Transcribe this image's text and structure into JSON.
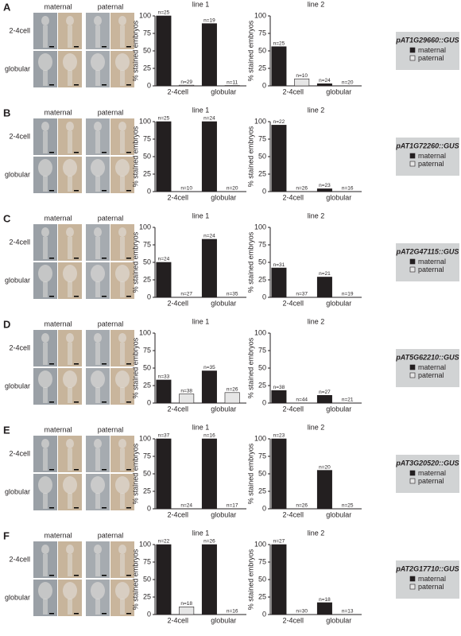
{
  "panels": [
    {
      "label": "A",
      "gene": "pAT1G29660::GUS",
      "columns": [
        "maternal",
        "paternal"
      ],
      "rows": [
        "2-4cell",
        "globular"
      ]
    },
    {
      "label": "B",
      "gene": "pAT1G72260::GUS",
      "columns": [
        "maternal",
        "paternal"
      ],
      "rows": [
        "2-4cell",
        "globular"
      ]
    },
    {
      "label": "C",
      "gene": "pAT2G47115::GUS",
      "columns": [
        "maternal",
        "paternal"
      ],
      "rows": [
        "2-4cell",
        "globular"
      ]
    },
    {
      "label": "D",
      "gene": "pAT5G62210::GUS",
      "columns": [
        "maternal",
        "paternal"
      ],
      "rows": [
        "2-4cell",
        "globular"
      ]
    },
    {
      "label": "E",
      "gene": "pAT3G20520::GUS",
      "columns": [
        "maternal",
        "paternal"
      ],
      "rows": [
        "2-4cell",
        "globular"
      ]
    },
    {
      "label": "F",
      "gene": "pAT2G17710::GUS",
      "columns": [
        "maternal",
        "paternal"
      ],
      "rows": [
        "2-4cell",
        "globular"
      ]
    }
  ],
  "chart_data": [
    {
      "type": "bar",
      "title": "line 1",
      "y_label": "% stained embryos",
      "categories": [
        "2-4cell",
        "globular"
      ],
      "ylim": [
        0,
        100
      ],
      "yticks": [
        0,
        25,
        50,
        75,
        100
      ],
      "series": [
        {
          "name": "maternal",
          "color": "#231f20",
          "values": [
            100,
            89
          ],
          "n_labels": [
            "n=25",
            "n=19"
          ]
        },
        {
          "name": "paternal",
          "color": "#e6e6e6",
          "values": [
            1,
            0.5
          ],
          "n_labels": [
            "n=29",
            "n=11"
          ]
        }
      ]
    },
    {
      "type": "bar",
      "title": "line 2",
      "y_label": "% stained embryos",
      "categories": [
        "2-4cell",
        "globular"
      ],
      "ylim": [
        0,
        100
      ],
      "yticks": [
        0,
        25,
        50,
        75,
        100
      ],
      "series": [
        {
          "name": "maternal",
          "color": "#231f20",
          "values": [
            56,
            3
          ],
          "n_labels": [
            "n=25",
            "n=24"
          ]
        },
        {
          "name": "paternal",
          "color": "#e6e6e6",
          "values": [
            10,
            0
          ],
          "n_labels": [
            "n=10",
            "n=20"
          ]
        }
      ]
    },
    {
      "type": "bar",
      "title": "line 1",
      "y_label": "% stained embryos",
      "categories": [
        "2-4cell",
        "globular"
      ],
      "ylim": [
        0,
        100
      ],
      "yticks": [
        0,
        25,
        50,
        75,
        100
      ],
      "series": [
        {
          "name": "maternal",
          "color": "#231f20",
          "values": [
            100,
            100
          ],
          "n_labels": [
            "n=25",
            "n=24"
          ]
        },
        {
          "name": "paternal",
          "color": "#e6e6e6",
          "values": [
            0,
            0
          ],
          "n_labels": [
            "n=10",
            "n=20"
          ]
        }
      ]
    },
    {
      "type": "bar",
      "title": "line 2",
      "y_label": "% stained embryos",
      "categories": [
        "2-4cell",
        "globular"
      ],
      "ylim": [
        0,
        100
      ],
      "yticks": [
        0,
        25,
        50,
        75,
        100
      ],
      "series": [
        {
          "name": "maternal",
          "color": "#231f20",
          "values": [
            95,
            4
          ],
          "n_labels": [
            "n=22",
            "n=23"
          ]
        },
        {
          "name": "paternal",
          "color": "#e6e6e6",
          "values": [
            0,
            0
          ],
          "n_labels": [
            "n=26",
            "n=16"
          ]
        }
      ]
    },
    {
      "type": "bar",
      "title": "line 1",
      "y_label": "% stained embryos",
      "categories": [
        "2-4cell",
        "globular"
      ],
      "ylim": [
        0,
        100
      ],
      "yticks": [
        0,
        25,
        50,
        75,
        100
      ],
      "series": [
        {
          "name": "maternal",
          "color": "#231f20",
          "values": [
            50,
            83
          ],
          "n_labels": [
            "n=24",
            "n=24"
          ]
        },
        {
          "name": "paternal",
          "color": "#e6e6e6",
          "values": [
            0,
            0
          ],
          "n_labels": [
            "n=27",
            "n=35"
          ]
        }
      ]
    },
    {
      "type": "bar",
      "title": "line 2",
      "y_label": "% stained embryos",
      "categories": [
        "2-4cell",
        "globular"
      ],
      "ylim": [
        0,
        100
      ],
      "yticks": [
        0,
        25,
        50,
        75,
        100
      ],
      "series": [
        {
          "name": "maternal",
          "color": "#231f20",
          "values": [
            42,
            29
          ],
          "n_labels": [
            "n=31",
            "n=21"
          ]
        },
        {
          "name": "paternal",
          "color": "#e6e6e6",
          "values": [
            0,
            0
          ],
          "n_labels": [
            "n=37",
            "n=19"
          ]
        }
      ]
    },
    {
      "type": "bar",
      "title": "line 1",
      "y_label": "% stained embryos",
      "categories": [
        "2-4cell",
        "globular"
      ],
      "ylim": [
        0,
        100
      ],
      "yticks": [
        0,
        25,
        50,
        75,
        100
      ],
      "series": [
        {
          "name": "maternal",
          "color": "#231f20",
          "values": [
            33,
            46
          ],
          "n_labels": [
            "n=33",
            "n=35"
          ]
        },
        {
          "name": "paternal",
          "color": "#e6e6e6",
          "values": [
            13,
            15
          ],
          "n_labels": [
            "n=38",
            "n=26"
          ]
        }
      ]
    },
    {
      "type": "bar",
      "title": "line 2",
      "y_label": "% stained embryos",
      "categories": [
        "2-4cell",
        "globular"
      ],
      "ylim": [
        0,
        100
      ],
      "yticks": [
        0,
        25,
        50,
        75,
        100
      ],
      "series": [
        {
          "name": "maternal",
          "color": "#231f20",
          "values": [
            18,
            11
          ],
          "n_labels": [
            "n=38",
            "n=27"
          ]
        },
        {
          "name": "paternal",
          "color": "#e6e6e6",
          "values": [
            0,
            0
          ],
          "n_labels": [
            "n=44",
            "n=21"
          ]
        }
      ]
    },
    {
      "type": "bar",
      "title": "line 1",
      "y_label": "% stained embryos",
      "categories": [
        "2-4cell",
        "globular"
      ],
      "ylim": [
        0,
        100
      ],
      "yticks": [
        0,
        25,
        50,
        75,
        100
      ],
      "series": [
        {
          "name": "maternal",
          "color": "#231f20",
          "values": [
            100,
            100
          ],
          "n_labels": [
            "n=37",
            "n=16"
          ]
        },
        {
          "name": "paternal",
          "color": "#e6e6e6",
          "values": [
            0,
            0
          ],
          "n_labels": [
            "n=24",
            "n=17"
          ]
        }
      ]
    },
    {
      "type": "bar",
      "title": "line 2",
      "y_label": "% stained embryos",
      "categories": [
        "2-4cell",
        "globular"
      ],
      "ylim": [
        0,
        100
      ],
      "yticks": [
        0,
        25,
        50,
        75,
        100
      ],
      "series": [
        {
          "name": "maternal",
          "color": "#231f20",
          "values": [
            100,
            55
          ],
          "n_labels": [
            "n=23",
            "n=20"
          ]
        },
        {
          "name": "paternal",
          "color": "#e6e6e6",
          "values": [
            0,
            0
          ],
          "n_labels": [
            "n=26",
            "n=25"
          ]
        }
      ]
    },
    {
      "type": "bar",
      "title": "line 1",
      "y_label": "% stained embryos",
      "categories": [
        "2-4cell",
        "globular"
      ],
      "ylim": [
        0,
        100
      ],
      "yticks": [
        0,
        25,
        50,
        75,
        100
      ],
      "series": [
        {
          "name": "maternal",
          "color": "#231f20",
          "values": [
            100,
            100
          ],
          "n_labels": [
            "n=22",
            "n=26"
          ]
        },
        {
          "name": "paternal",
          "color": "#e6e6e6",
          "values": [
            11,
            0
          ],
          "n_labels": [
            "n=18",
            "n=16"
          ]
        }
      ]
    },
    {
      "type": "bar",
      "title": "line 2",
      "y_label": "% stained embryos",
      "categories": [
        "2-4cell",
        "globular"
      ],
      "ylim": [
        0,
        100
      ],
      "yticks": [
        0,
        25,
        50,
        75,
        100
      ],
      "series": [
        {
          "name": "maternal",
          "color": "#231f20",
          "values": [
            100,
            17
          ],
          "n_labels": [
            "n=27",
            "n=18"
          ]
        },
        {
          "name": "paternal",
          "color": "#e6e6e6",
          "values": [
            0,
            0
          ],
          "n_labels": [
            "n=30",
            "n=13"
          ]
        }
      ]
    }
  ]
}
